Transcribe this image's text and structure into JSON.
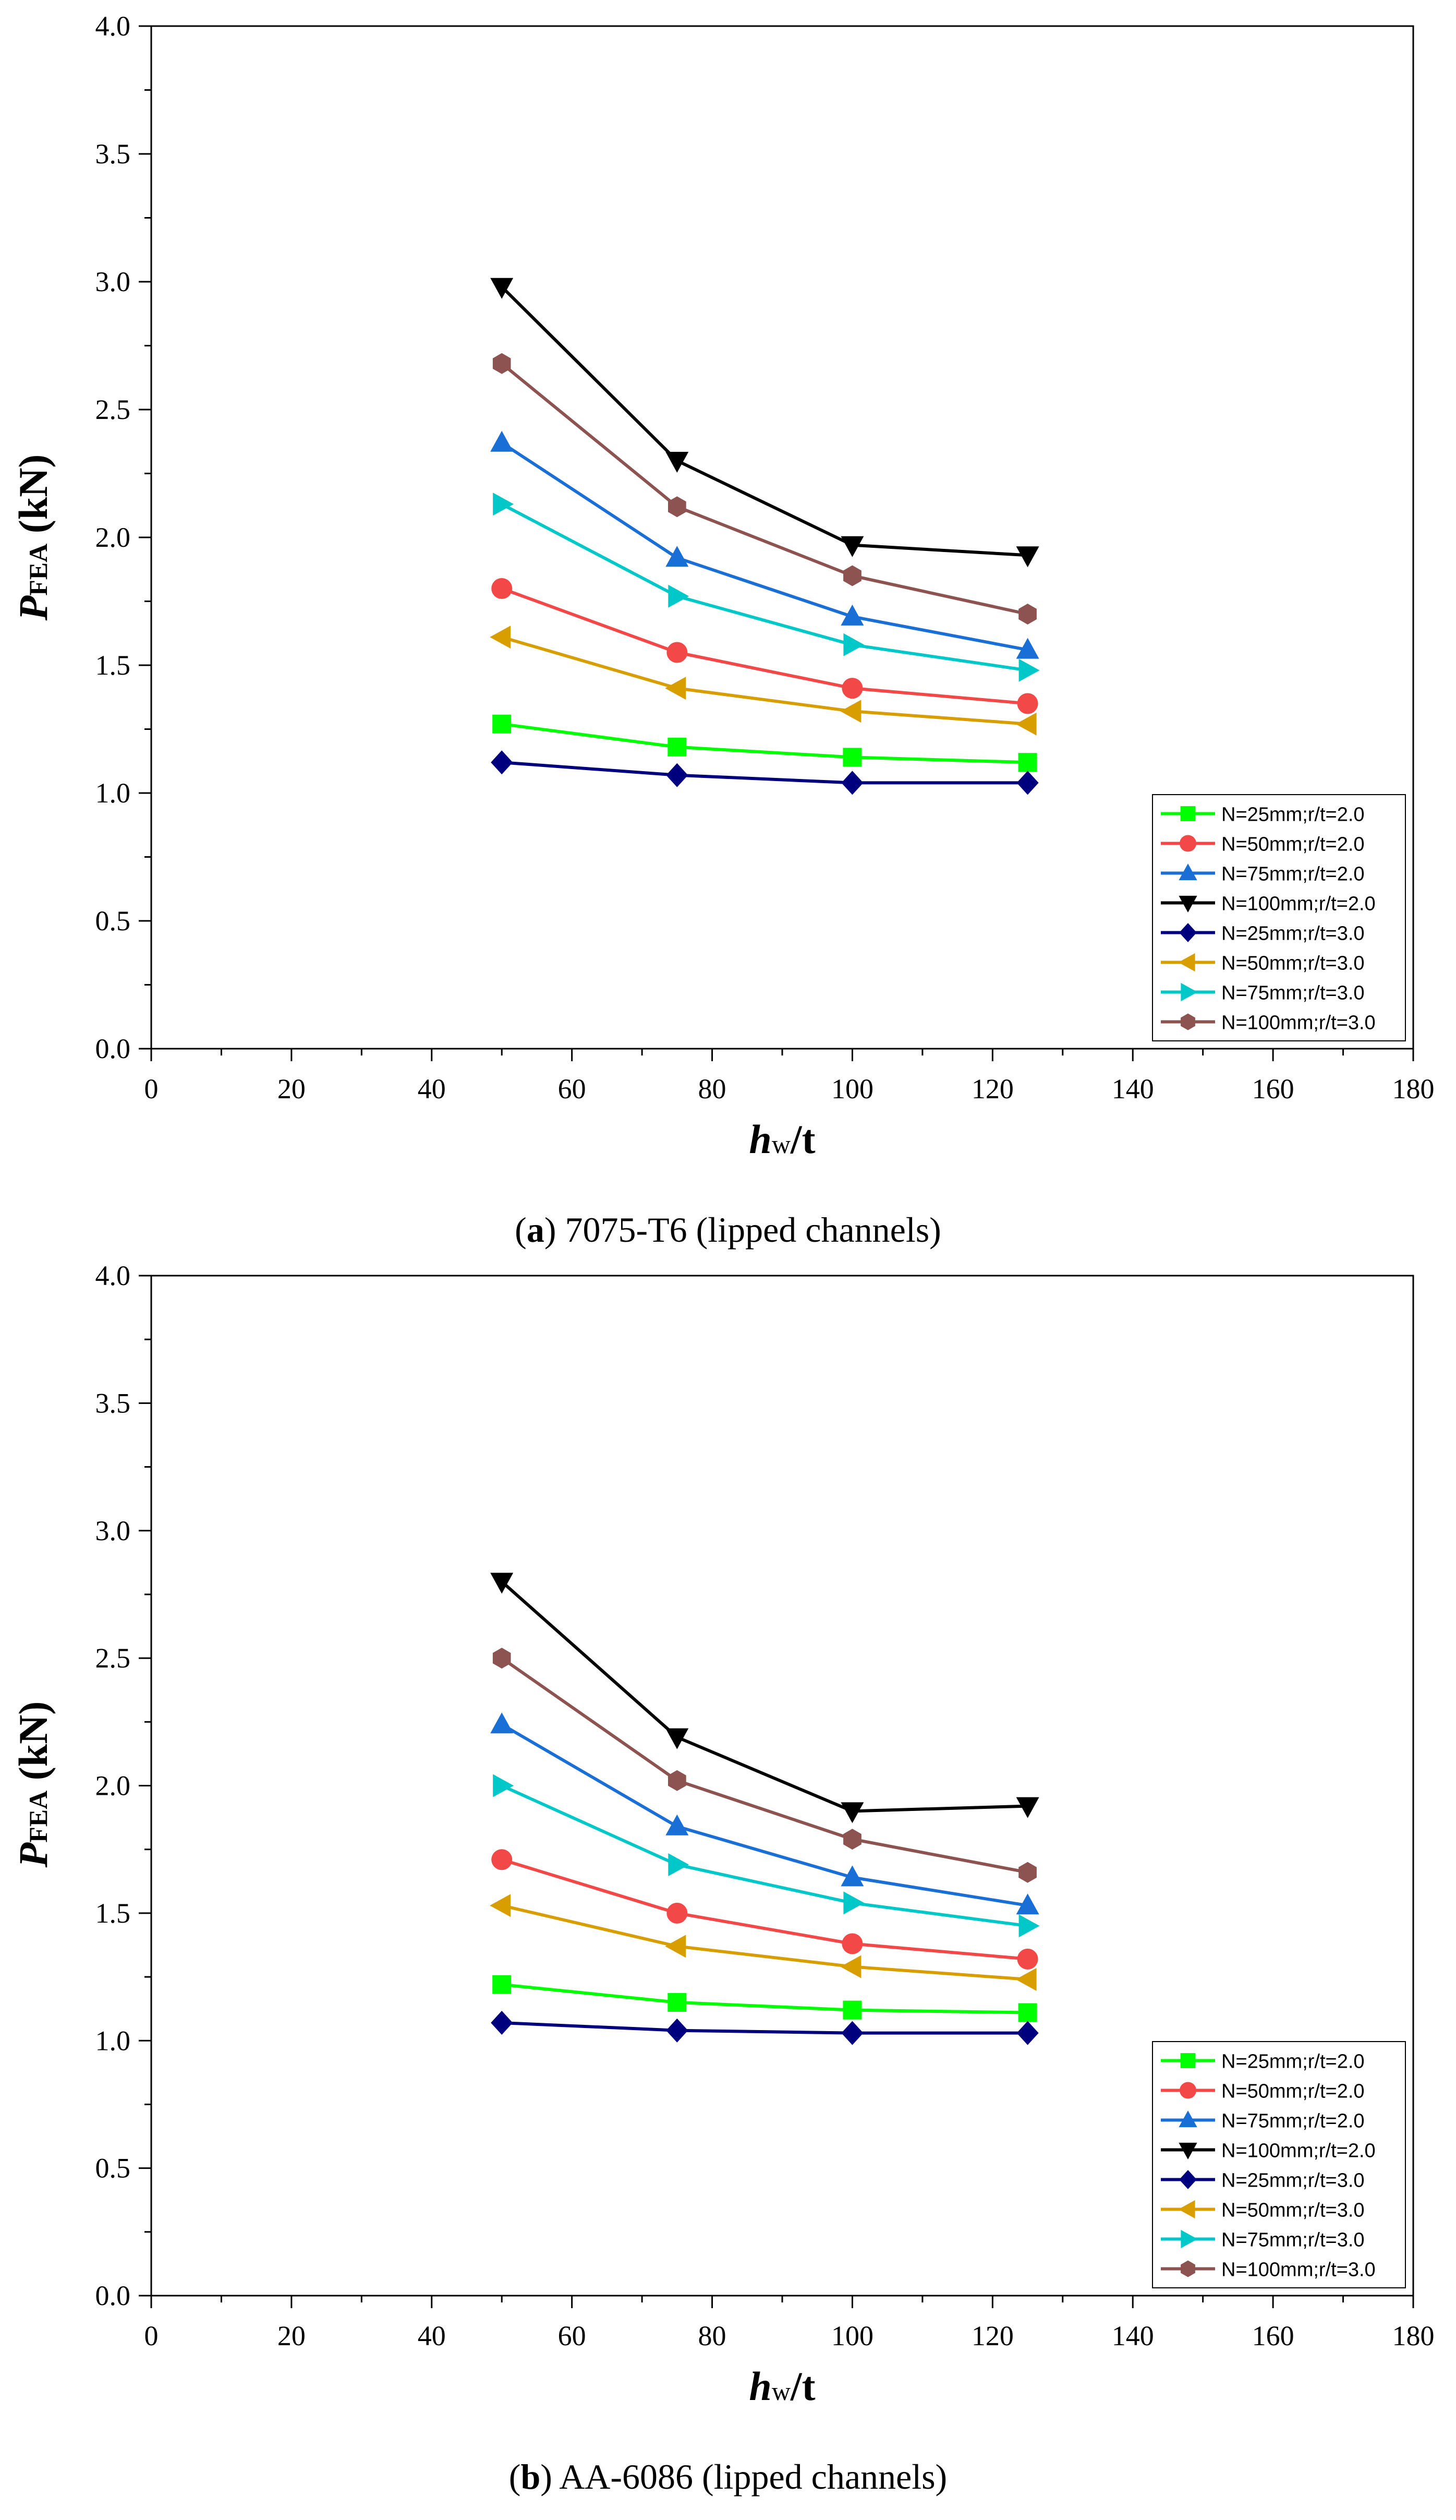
{
  "chart_data": [
    {
      "type": "line",
      "caption_letter": "a",
      "caption_text": "7075-T6 (lipped channels)",
      "xlabel": {
        "main": "h",
        "sub": "w",
        "rest": "/t"
      },
      "ylabel": {
        "main": "P",
        "sub": "FEA",
        "rest": " (kN)"
      },
      "xlim": [
        0,
        180
      ],
      "ylim": [
        0,
        4.0
      ],
      "xticks": [
        "0",
        "20",
        "40",
        "60",
        "80",
        "100",
        "120",
        "140",
        "160",
        "180"
      ],
      "yticks": [
        "0.0",
        "0.5",
        "1.0",
        "1.5",
        "2.0",
        "2.5",
        "3.0",
        "3.5",
        "4.0"
      ],
      "legend_position": "lower-right",
      "x": [
        50,
        75,
        100,
        125
      ],
      "series": [
        {
          "name": "N=25mm;r/t=2.0",
          "color": "#00ff00",
          "marker": "square",
          "values": [
            1.27,
            1.18,
            1.14,
            1.12
          ]
        },
        {
          "name": "N=50mm;r/t=2.0",
          "color": "#f24848",
          "marker": "circle",
          "values": [
            1.8,
            1.55,
            1.41,
            1.35
          ]
        },
        {
          "name": "N=75mm;r/t=2.0",
          "color": "#1a6fd6",
          "marker": "triangle-up",
          "values": [
            2.37,
            1.92,
            1.69,
            1.56
          ]
        },
        {
          "name": "N=100mm;r/t=2.0",
          "color": "#000000",
          "marker": "triangle-down",
          "values": [
            2.98,
            2.3,
            1.97,
            1.93
          ]
        },
        {
          "name": "N=25mm;r/t=3.0",
          "color": "#00007e",
          "marker": "diamond",
          "values": [
            1.12,
            1.07,
            1.04,
            1.04
          ]
        },
        {
          "name": "N=50mm;r/t=3.0",
          "color": "#d89e00",
          "marker": "triangle-left",
          "values": [
            1.61,
            1.41,
            1.32,
            1.27
          ]
        },
        {
          "name": "N=75mm;r/t=3.0",
          "color": "#00c8c8",
          "marker": "triangle-right",
          "values": [
            2.13,
            1.77,
            1.58,
            1.48
          ]
        },
        {
          "name": "N=100mm;r/t=3.0",
          "color": "#8c5350",
          "marker": "hexagon",
          "values": [
            2.68,
            2.12,
            1.85,
            1.7
          ]
        }
      ]
    },
    {
      "type": "line",
      "caption_letter": "b",
      "caption_text": "AA-6086 (lipped channels)",
      "xlabel": {
        "main": "h",
        "sub": "w",
        "rest": "/t"
      },
      "ylabel": {
        "main": "P",
        "sub": "FEA",
        "rest": " (kN)"
      },
      "xlim": [
        0,
        180
      ],
      "ylim": [
        0,
        4.0
      ],
      "xticks": [
        "0",
        "20",
        "40",
        "60",
        "80",
        "100",
        "120",
        "140",
        "160",
        "180"
      ],
      "yticks": [
        "0.0",
        "0.5",
        "1.0",
        "1.5",
        "2.0",
        "2.5",
        "3.0",
        "3.5",
        "4.0"
      ],
      "legend_position": "lower-right",
      "x": [
        50,
        75,
        100,
        125
      ],
      "series": [
        {
          "name": "N=25mm;r/t=2.0",
          "color": "#00ff00",
          "marker": "square",
          "values": [
            1.22,
            1.15,
            1.12,
            1.11
          ]
        },
        {
          "name": "N=50mm;r/t=2.0",
          "color": "#f24848",
          "marker": "circle",
          "values": [
            1.71,
            1.5,
            1.38,
            1.32
          ]
        },
        {
          "name": "N=75mm;r/t=2.0",
          "color": "#1a6fd6",
          "marker": "triangle-up",
          "values": [
            2.24,
            1.84,
            1.64,
            1.53
          ]
        },
        {
          "name": "N=100mm;r/t=2.0",
          "color": "#000000",
          "marker": "triangle-down",
          "values": [
            2.8,
            2.19,
            1.9,
            1.92
          ]
        },
        {
          "name": "N=25mm;r/t=3.0",
          "color": "#00007e",
          "marker": "diamond",
          "values": [
            1.07,
            1.04,
            1.03,
            1.03
          ]
        },
        {
          "name": "N=50mm;r/t=3.0",
          "color": "#d89e00",
          "marker": "triangle-left",
          "values": [
            1.53,
            1.37,
            1.29,
            1.24
          ]
        },
        {
          "name": "N=75mm;r/t=3.0",
          "color": "#00c8c8",
          "marker": "triangle-right",
          "values": [
            2.0,
            1.69,
            1.54,
            1.45
          ]
        },
        {
          "name": "N=100mm;r/t=3.0",
          "color": "#8c5350",
          "marker": "hexagon",
          "values": [
            2.5,
            2.02,
            1.79,
            1.66
          ]
        }
      ]
    }
  ]
}
